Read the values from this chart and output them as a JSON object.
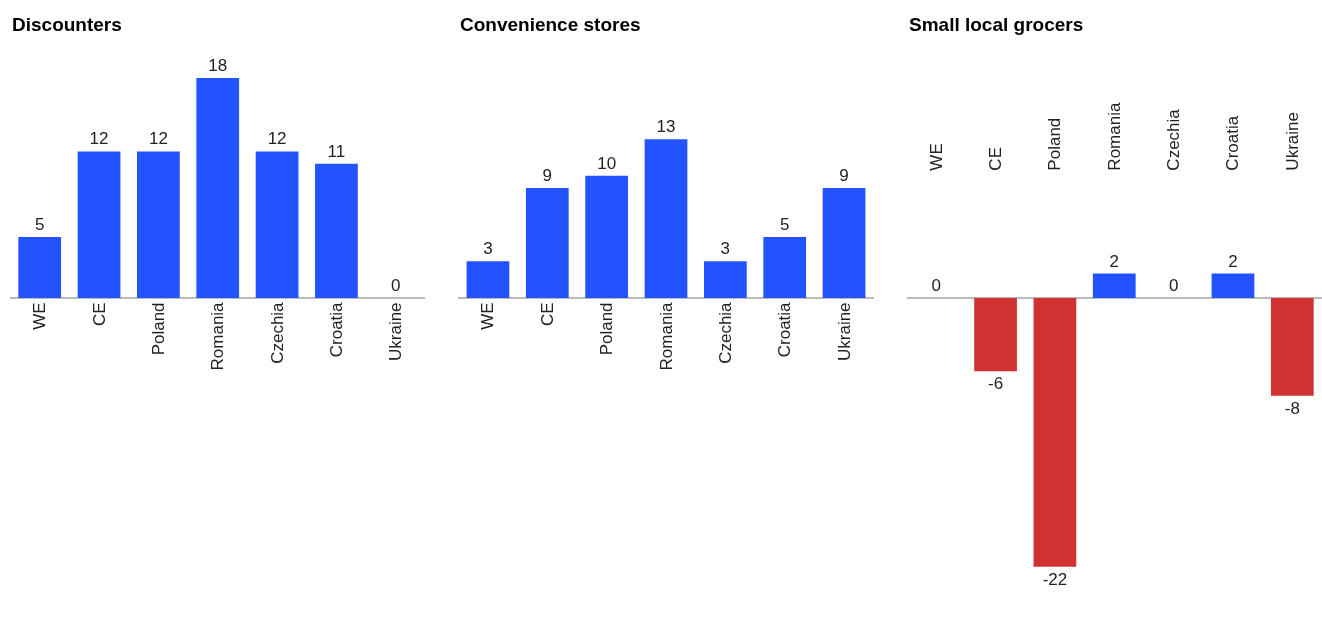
{
  "chart_data": [
    {
      "type": "bar",
      "title": "Discounters",
      "categories": [
        "WE",
        "CE",
        "Poland",
        "Romania",
        "Czechia",
        "Croatia",
        "Ukraine"
      ],
      "values": [
        5,
        12,
        12,
        18,
        12,
        11,
        0
      ],
      "color": "#2353ff",
      "data_labels": true,
      "tick_labels": "x"
    },
    {
      "type": "bar",
      "title": "Convenience stores",
      "categories": [
        "WE",
        "CE",
        "Poland",
        "Romania",
        "Czechia",
        "Croatia",
        "Ukraine"
      ],
      "values": [
        3,
        9,
        10,
        13,
        3,
        5,
        9
      ],
      "color": "#2353ff",
      "data_labels": true,
      "tick_labels": "x"
    },
    {
      "type": "bar",
      "title": "Small local grocers",
      "categories": [
        "WE",
        "CE",
        "Poland",
        "Romania",
        "Czechia",
        "Croatia",
        "Ukraine"
      ],
      "values": [
        0,
        -6,
        -22,
        2,
        0,
        2,
        -8
      ],
      "colors": [
        "#2353ff",
        "#d03232",
        "#d03232",
        "#2353ff",
        "#2353ff",
        "#2353ff",
        "#d03232"
      ],
      "data_labels": true,
      "tick_labels": "x"
    }
  ]
}
